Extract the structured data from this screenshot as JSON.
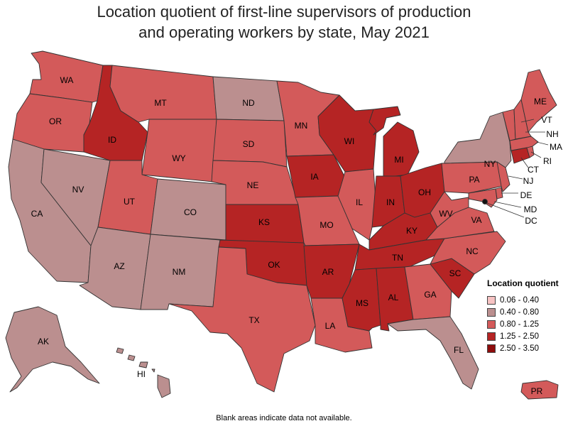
{
  "title_line1": "Location quotient of first-line supervisors of production",
  "title_line2": "and operating workers by state, May 2021",
  "legend": {
    "title": "Location quotient",
    "items": [
      {
        "label": "0.06 - 0.40",
        "color": "#f7c3c3"
      },
      {
        "label": "0.40 - 0.80",
        "color": "#bb8f8f"
      },
      {
        "label": "0.80 - 1.25",
        "color": "#d35a5a"
      },
      {
        "label": "1.25 - 2.50",
        "color": "#b52424"
      },
      {
        "label": "2.50 - 3.50",
        "color": "#8e0c0c"
      }
    ]
  },
  "footnote": "Blank areas indicate data not available.",
  "states": {
    "WA": {
      "label": "WA",
      "cat": 2
    },
    "OR": {
      "label": "OR",
      "cat": 2
    },
    "CA": {
      "label": "CA",
      "cat": 1
    },
    "NV": {
      "label": "NV",
      "cat": 1
    },
    "ID": {
      "label": "ID",
      "cat": 3
    },
    "MT": {
      "label": "MT",
      "cat": 2
    },
    "WY": {
      "label": "WY",
      "cat": 2
    },
    "UT": {
      "label": "UT",
      "cat": 2
    },
    "AZ": {
      "label": "AZ",
      "cat": 1
    },
    "CO": {
      "label": "CO",
      "cat": 1
    },
    "NM": {
      "label": "NM",
      "cat": 1
    },
    "ND": {
      "label": "ND",
      "cat": 1
    },
    "SD": {
      "label": "SD",
      "cat": 2
    },
    "NE": {
      "label": "NE",
      "cat": 2
    },
    "KS": {
      "label": "KS",
      "cat": 3
    },
    "OK": {
      "label": "OK",
      "cat": 3
    },
    "TX": {
      "label": "TX",
      "cat": 2
    },
    "MN": {
      "label": "MN",
      "cat": 2
    },
    "IA": {
      "label": "IA",
      "cat": 3
    },
    "MO": {
      "label": "MO",
      "cat": 2
    },
    "AR": {
      "label": "AR",
      "cat": 3
    },
    "LA": {
      "label": "LA",
      "cat": 2
    },
    "WI": {
      "label": "WI",
      "cat": 3
    },
    "IL": {
      "label": "IL",
      "cat": 2
    },
    "MI": {
      "label": "MI",
      "cat": 3
    },
    "IN": {
      "label": "IN",
      "cat": 3
    },
    "OH": {
      "label": "OH",
      "cat": 3
    },
    "KY": {
      "label": "KY",
      "cat": 3
    },
    "TN": {
      "label": "TN",
      "cat": 3
    },
    "MS": {
      "label": "MS",
      "cat": 3
    },
    "AL": {
      "label": "AL",
      "cat": 3
    },
    "GA": {
      "label": "GA",
      "cat": 2
    },
    "FL": {
      "label": "FL",
      "cat": 1
    },
    "SC": {
      "label": "SC",
      "cat": 3
    },
    "NC": {
      "label": "NC",
      "cat": 2
    },
    "VA": {
      "label": "VA",
      "cat": 2
    },
    "WV": {
      "label": "WV",
      "cat": 2
    },
    "PA": {
      "label": "PA",
      "cat": 2
    },
    "NY": {
      "label": "NY",
      "cat": 1
    },
    "VT": {
      "label": "VT",
      "cat": 2
    },
    "NH": {
      "label": "NH",
      "cat": 2
    },
    "ME": {
      "label": "ME",
      "cat": 2
    },
    "MA": {
      "label": "MA",
      "cat": 2
    },
    "RI": {
      "label": "RI",
      "cat": 2
    },
    "CT": {
      "label": "CT",
      "cat": 3
    },
    "NJ": {
      "label": "NJ",
      "cat": 2
    },
    "DE": {
      "label": "DE",
      "cat": 2
    },
    "MD": {
      "label": "MD",
      "cat": 2
    },
    "DC": {
      "label": "DC",
      "cat": 2
    },
    "AK": {
      "label": "AK",
      "cat": 1
    },
    "HI": {
      "label": "HI",
      "cat": 1
    },
    "PR": {
      "label": "PR",
      "cat": 2
    }
  }
}
